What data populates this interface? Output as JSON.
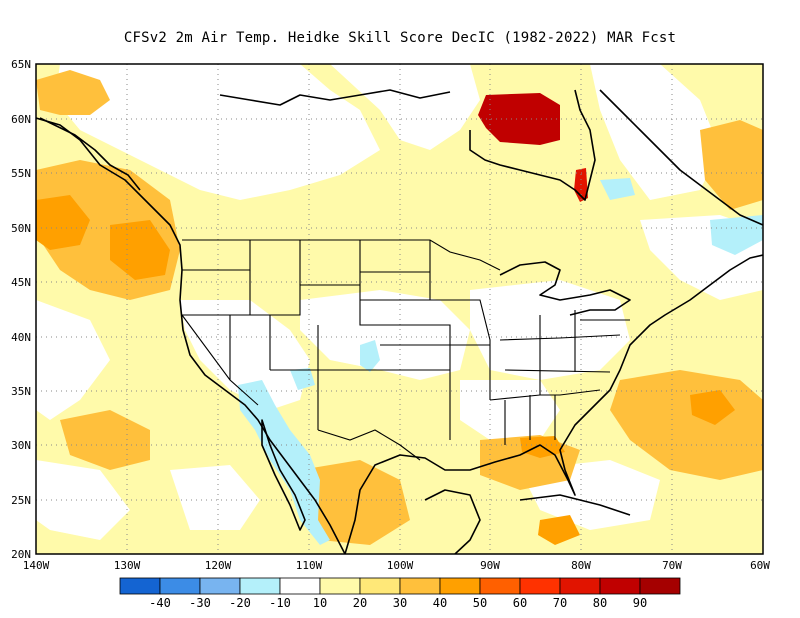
{
  "title": "CFSv2  2m Air Temp. Heidke Skill Score DecIC (1982-2022) MAR Fcst",
  "map": {
    "lat_labels": [
      "65N",
      "60N",
      "55N",
      "50N",
      "45N",
      "40N",
      "35N",
      "30N",
      "25N",
      "20N"
    ],
    "lon_labels": [
      "140W",
      "130W",
      "120W",
      "110W",
      "100W",
      "90W",
      "80W",
      "70W",
      "60W"
    ],
    "lat_range": [
      20,
      65
    ],
    "lon_range": [
      -140,
      -60
    ],
    "grid": "dotted"
  },
  "colorbar": {
    "colors": [
      "#1464d2",
      "#3c8ce6",
      "#78b4f0",
      "#b4f0fa",
      "#ffffff",
      "#fffaaa",
      "#ffe878",
      "#ffc03c",
      "#ffa000",
      "#ff6000",
      "#ff3200",
      "#e11400",
      "#c00000",
      "#a50000"
    ],
    "labels": [
      "-40",
      "-30",
      "-20",
      "-10",
      "10",
      "20",
      "30",
      "40",
      "50",
      "60",
      "70",
      "80",
      "90"
    ]
  },
  "colors": {
    "light_yellow": "#fffaaa",
    "yellow": "#ffe878",
    "orange": "#ffc03c",
    "dark_orange": "#ffa000",
    "light_blue": "#b4f0fa",
    "blue": "#78b4f0",
    "dark_red": "#c00000"
  }
}
